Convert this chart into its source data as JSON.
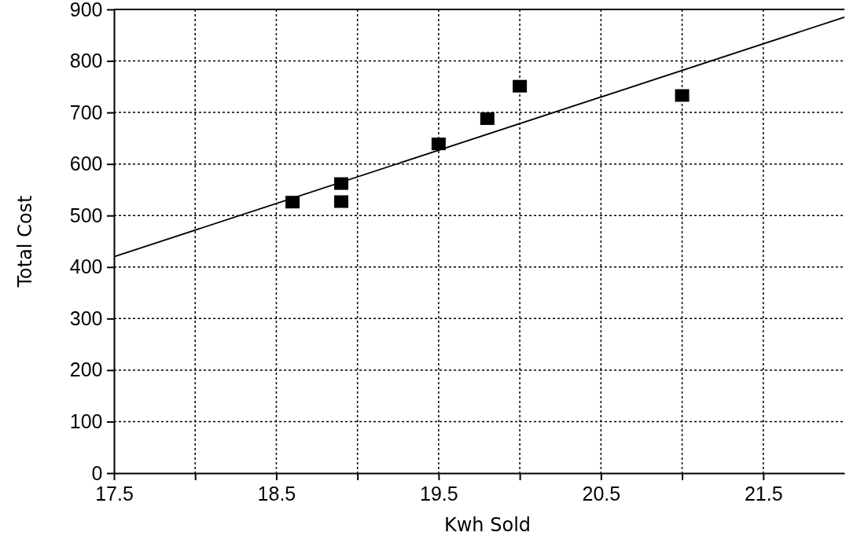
{
  "chart_data": {
    "type": "scatter",
    "xlabel": "Kwh Sold",
    "ylabel": "Total Cost",
    "xlim": [
      17.5,
      22
    ],
    "ylim": [
      0,
      900
    ],
    "xticks": [
      17.5,
      {
        "value": 18,
        "label": null
      },
      18.5,
      {
        "value": 19,
        "label": null
      },
      19.5,
      {
        "value": 20,
        "label": null
      },
      20.5,
      {
        "value": 21,
        "label": null
      },
      21.5
    ],
    "yticks": [
      0,
      100,
      200,
      300,
      400,
      500,
      600,
      700,
      800,
      900
    ],
    "grid": true,
    "series": [
      {
        "marker": "square",
        "color": "#000000",
        "x": [
          18.6,
          18.9,
          18.9,
          19.5,
          19.8,
          20.0,
          21.0
        ],
        "values": [
          526,
          562,
          527,
          639,
          688,
          751,
          733
        ]
      },
      {
        "type": "line",
        "color": "#000000",
        "x": [
          17.5,
          22
        ],
        "values": [
          420,
          885
        ]
      }
    ]
  }
}
